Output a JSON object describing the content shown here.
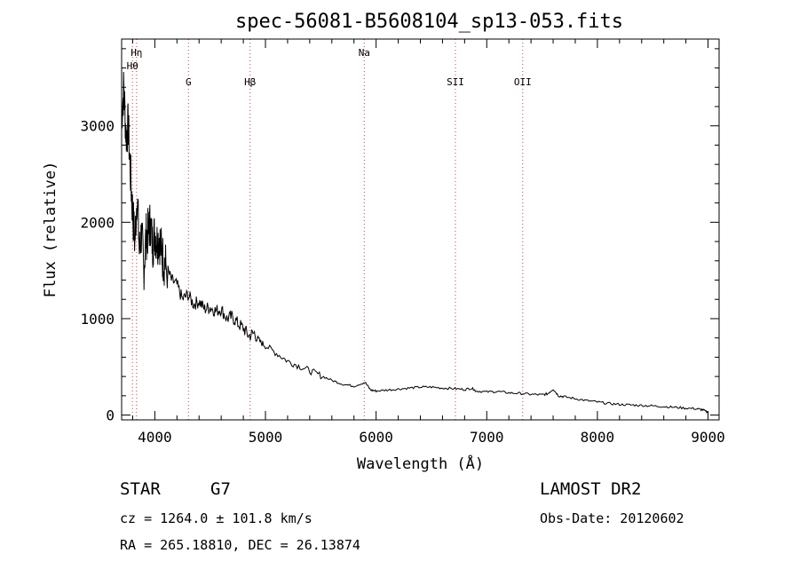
{
  "chart_data": {
    "type": "line",
    "title": "spec-56081-B5608104_sp13-053.fits",
    "xlabel": "Wavelength (Å)",
    "ylabel": "Flux (relative)",
    "xlim": [
      3700,
      9100
    ],
    "ylim": [
      -50,
      3900
    ],
    "xticks": [
      4000,
      5000,
      6000,
      7000,
      8000,
      9000
    ],
    "yticks": [
      0,
      1000,
      2000,
      3000
    ],
    "grid": false,
    "series": [
      {
        "name": "spectrum",
        "color": "#000000",
        "x": [
          3700,
          3720,
          3740,
          3760,
          3780,
          3800,
          3820,
          3840,
          3860,
          3880,
          3900,
          3920,
          3940,
          3960,
          3980,
          4000,
          4020,
          4040,
          4060,
          4080,
          4100,
          4150,
          4200,
          4250,
          4300,
          4350,
          4400,
          4450,
          4500,
          4550,
          4600,
          4650,
          4700,
          4750,
          4800,
          4850,
          4900,
          4950,
          5000,
          5100,
          5200,
          5300,
          5400,
          5500,
          5600,
          5700,
          5800,
          5900,
          5950,
          6000,
          6100,
          6200,
          6300,
          6400,
          6500,
          6600,
          6700,
          6800,
          6870,
          6900,
          7000,
          7100,
          7200,
          7300,
          7400,
          7500,
          7550,
          7600,
          7650,
          7700,
          7800,
          7900,
          8000,
          8100,
          8200,
          8300,
          8400,
          8500,
          8600,
          8700,
          8800,
          8900,
          8950,
          9000
        ],
        "y": [
          3100,
          3400,
          2900,
          3000,
          2500,
          2100,
          1800,
          2300,
          1700,
          1900,
          1500,
          1850,
          1900,
          2000,
          1750,
          1900,
          1800,
          1850,
          1700,
          1600,
          1550,
          1400,
          1350,
          1200,
          1250,
          1150,
          1180,
          1100,
          1120,
          1080,
          1100,
          1000,
          1020,
          950,
          900,
          820,
          850,
          760,
          720,
          640,
          560,
          510,
          460,
          410,
          360,
          320,
          300,
          340,
          260,
          250,
          260,
          270,
          280,
          290,
          290,
          280,
          275,
          265,
          280,
          250,
          240,
          245,
          230,
          225,
          215,
          210,
          220,
          270,
          200,
          190,
          170,
          150,
          135,
          120,
          110,
          105,
          100,
          95,
          88,
          80,
          72,
          65,
          55,
          25
        ]
      }
    ],
    "lines": [
      {
        "label": "Hη",
        "wavelength": 3835
      },
      {
        "label": "Hθ",
        "wavelength": 3798
      },
      {
        "label": "G",
        "wavelength": 4304
      },
      {
        "label": "Hβ",
        "wavelength": 4861
      },
      {
        "label": "Na",
        "wavelength": 5893
      },
      {
        "label": "SII",
        "wavelength": 6717
      },
      {
        "label": "OII",
        "wavelength": 7325
      }
    ]
  },
  "info": {
    "class": "STAR",
    "subclass": "G7",
    "survey": "LAMOST DR2",
    "cz": "cz = 1264.0 ± 101.8 km/s",
    "obs_date": "Obs-Date: 20120602",
    "coords": "RA = 265.18810, DEC =  26.13874"
  }
}
